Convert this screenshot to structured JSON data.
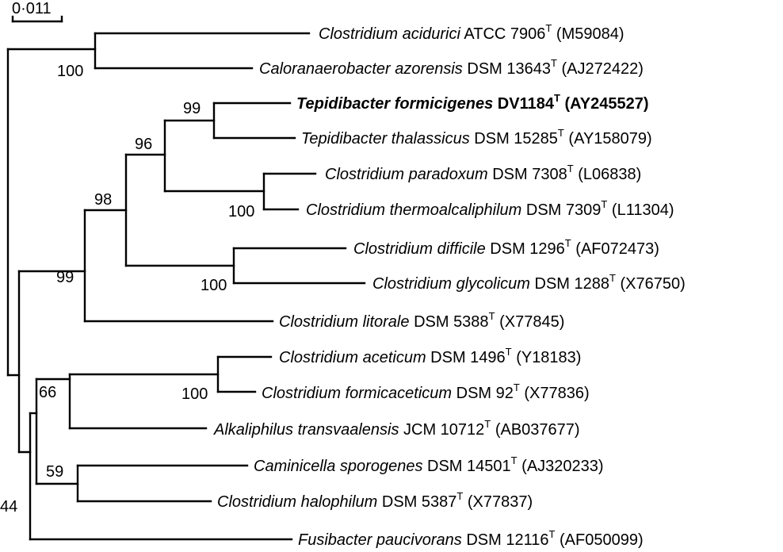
{
  "scale_bar": {
    "label": "0·011",
    "value": 0.011
  },
  "taxa": [
    {
      "id": "t1",
      "genus_species": "Clostridium acidurici",
      "strain": "ATCC 7906",
      "sup": "T",
      "accession": "(M59084)",
      "bold": false
    },
    {
      "id": "t2",
      "genus_species": "Caloranaerobacter azorensis",
      "strain": "DSM 13643",
      "sup": "T",
      "accession": "(AJ272422)",
      "bold": false
    },
    {
      "id": "t3",
      "genus_species": "Tepidibacter formicigenes",
      "strain": "DV1184",
      "sup": "T",
      "accession": "(AY245527)",
      "bold": true
    },
    {
      "id": "t4",
      "genus_species": "Tepidibacter thalassicus",
      "strain": "DSM 15285",
      "sup": "T",
      "accession": "(AY158079)",
      "bold": false
    },
    {
      "id": "t5",
      "genus_species": "Clostridium paradoxum",
      "strain": "DSM 7308",
      "sup": "T",
      "accession": "(L06838)",
      "bold": false
    },
    {
      "id": "t6",
      "genus_species": "Clostridium thermoalcaliphilum",
      "strain": "DSM 7309",
      "sup": "T",
      "accession": "(L11304)",
      "bold": false
    },
    {
      "id": "t7",
      "genus_species": "Clostridium difficile",
      "strain": "DSM 1296",
      "sup": "T",
      "accession": "(AF072473)",
      "bold": false
    },
    {
      "id": "t8",
      "genus_species": "Clostridium glycolicum",
      "strain": "DSM 1288",
      "sup": "T",
      "accession": "(X76750)",
      "bold": false
    },
    {
      "id": "t9",
      "genus_species": "Clostridium litorale",
      "strain": "DSM 5388",
      "sup": "T",
      "accession": "(X77845)",
      "bold": false
    },
    {
      "id": "t10",
      "genus_species": "Clostridium aceticum",
      "strain": "DSM 1496",
      "sup": "T",
      "accession": "(Y18183)",
      "bold": false
    },
    {
      "id": "t11",
      "genus_species": "Clostridium formicaceticum",
      "strain": "DSM 92",
      "sup": "T",
      "accession": "(X77836)",
      "bold": false
    },
    {
      "id": "t12",
      "genus_species": "Alkaliphilus transvaalensis",
      "strain": "JCM 10712",
      "sup": "T",
      "accession": "(AB037677)",
      "bold": false
    },
    {
      "id": "t13",
      "genus_species": "Caminicella sporogenes",
      "strain": "DSM 14501",
      "sup": "T",
      "accession": "(AJ320233)",
      "bold": false
    },
    {
      "id": "t14",
      "genus_species": "Clostridium halophilum",
      "strain": "DSM 5387",
      "sup": "T",
      "accession": "(X77837)",
      "bold": false
    },
    {
      "id": "t15",
      "genus_species": "Fusibacter paucivorans",
      "strain": "DSM 12116",
      "sup": "T",
      "accession": "(AF050099)",
      "bold": false
    }
  ],
  "bootstrap": [
    {
      "node": "n_acid_calo",
      "value": "100"
    },
    {
      "node": "n_tepi",
      "value": "99"
    },
    {
      "node": "n_tepi_para",
      "value": "96"
    },
    {
      "node": "n_para_therm",
      "value": "100"
    },
    {
      "node": "n_upper_mid",
      "value": "98"
    },
    {
      "node": "n_diff_gly",
      "value": "100"
    },
    {
      "node": "n_upper",
      "value": "99"
    },
    {
      "node": "n_acet_form",
      "value": "100"
    },
    {
      "node": "n_lower_a",
      "value": "66"
    },
    {
      "node": "n_cam_halo",
      "value": "59"
    },
    {
      "node": "n_lower",
      "value": "44"
    }
  ]
}
